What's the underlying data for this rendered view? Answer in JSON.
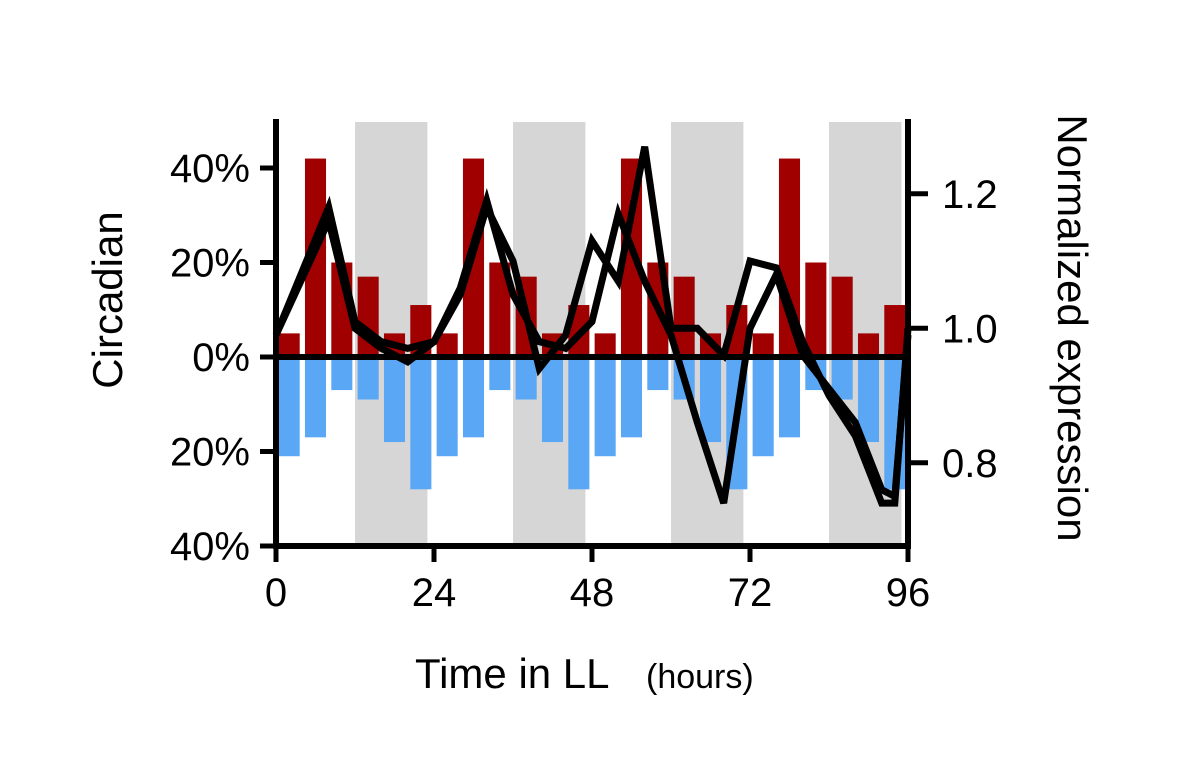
{
  "chart_data": {
    "type": "bar",
    "xlabel": "Time in LL",
    "xlabel_unit": "(hours)",
    "ylabel_left": "Circadian",
    "ylabel_right": "Normalized expression",
    "x_ticks": [
      {
        "value": 0,
        "label": "0"
      },
      {
        "value": 24,
        "label": "24"
      },
      {
        "value": 48,
        "label": "48"
      },
      {
        "value": 72,
        "label": "72"
      },
      {
        "value": 96,
        "label": "96"
      }
    ],
    "xlim": [
      0,
      96
    ],
    "left_ticks": [
      {
        "value": 40,
        "label": "40%"
      },
      {
        "value": 20,
        "label": "20%"
      },
      {
        "value": 0,
        "label": "0%"
      },
      {
        "value": -20,
        "label": "20%"
      },
      {
        "value": -40,
        "label": "40%"
      }
    ],
    "ylim_left": [
      -40,
      50
    ],
    "right_ticks": [
      {
        "value": 1.2,
        "label": "1.2"
      },
      {
        "value": 1.0,
        "label": "1.0"
      },
      {
        "value": 0.8,
        "label": "0.8"
      }
    ],
    "ylim_right": [
      0.7,
      1.28
    ],
    "shaded_intervals": [
      [
        12,
        23
      ],
      [
        36,
        47
      ],
      [
        60,
        71
      ],
      [
        84,
        95
      ]
    ],
    "bar_width_hours": 3.2,
    "bar_centers": [
      2,
      6,
      10,
      14,
      18,
      22,
      26,
      30,
      34,
      38,
      42,
      46,
      50,
      54,
      58,
      62,
      66,
      70,
      74,
      78,
      82,
      86,
      90,
      94
    ],
    "series": [
      {
        "color": "#a00000",
        "values": [
          5,
          42,
          20,
          17,
          5,
          11,
          5,
          42,
          20,
          17,
          5,
          11,
          5,
          42,
          20,
          17,
          5,
          11,
          5,
          42,
          20,
          17,
          5,
          11
        ]
      },
      {
        "color": "#5aa7f6",
        "values": [
          -21,
          -17,
          -7,
          -9,
          -18,
          -28,
          -21,
          -17,
          -7,
          -9,
          -18,
          -28,
          -21,
          -17,
          -7,
          -9,
          -18,
          -28,
          -21,
          -17,
          -7,
          -9,
          -18,
          -28
        ]
      }
    ],
    "lines": [
      {
        "color": "#000000",
        "x": [
          0,
          8,
          12,
          16,
          20,
          24,
          28,
          32,
          36,
          40,
          44,
          48,
          52,
          56,
          60,
          64,
          68,
          72,
          76,
          80,
          84,
          88,
          92,
          94,
          96
        ],
        "y": [
          0.99,
          1.18,
          1.01,
          0.98,
          0.97,
          0.98,
          1.05,
          1.18,
          1.1,
          0.94,
          0.99,
          1.13,
          1.07,
          1.27,
          1.0,
          1.0,
          0.96,
          1.1,
          1.09,
          0.98,
          0.9,
          0.84,
          0.74,
          0.74,
          1.0
        ]
      },
      {
        "color": "#000000",
        "x": [
          0,
          8,
          12,
          16,
          20,
          24,
          28,
          32,
          36,
          40,
          44,
          48,
          52,
          56,
          60,
          64,
          68,
          72,
          76,
          80,
          84,
          88,
          92,
          94,
          96
        ],
        "y": [
          0.99,
          1.16,
          1.0,
          0.97,
          0.95,
          0.98,
          1.06,
          1.19,
          1.05,
          0.98,
          0.97,
          1.01,
          1.17,
          1.07,
          0.99,
          0.86,
          0.74,
          1.0,
          1.08,
          0.96,
          0.91,
          0.86,
          0.76,
          0.75,
          0.99
        ]
      }
    ]
  }
}
